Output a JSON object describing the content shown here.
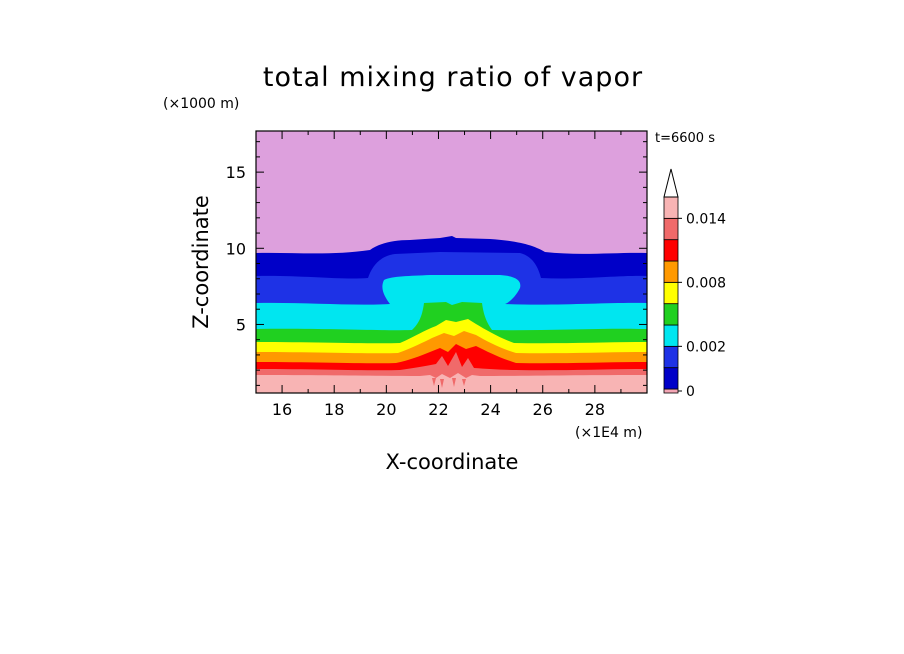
{
  "chart_data": {
    "type": "heatmap",
    "title": "total mixing ratio of vapor",
    "xlabel": "X-coordinate",
    "ylabel": "Z-coordinate",
    "x_unit": "(×1E4 m)",
    "y_unit": "(×1000 m)",
    "time_label": "t=6600 s",
    "xlim": [
      15,
      30
    ],
    "ylim": [
      0.5,
      17.7
    ],
    "x_ticks": [
      "16",
      "18",
      "20",
      "22",
      "24",
      "26",
      "28"
    ],
    "y_ticks": [
      "5",
      "10",
      "15"
    ],
    "colorbar": {
      "labels": [
        "0",
        "0.002",
        "0.008",
        "0.014"
      ],
      "levels": [
        0,
        0.001,
        0.002,
        0.004,
        0.006,
        0.008,
        0.01,
        0.012,
        0.014,
        0.016
      ],
      "colors": [
        "#f4a6b5",
        "#0000c8",
        "#1e32e6",
        "#00e6f0",
        "#20d020",
        "#ffff00",
        "#ff9900",
        "#ff0000",
        "#f06a6a",
        "#f8b4b4",
        "#dda0dd"
      ]
    },
    "bands_far_field": [
      {
        "level_from": 0.016,
        "level_to": 0.014,
        "z_top": 1.3,
        "color": "#f8b4b4"
      },
      {
        "level_from": 0.014,
        "level_to": 0.012,
        "z_top": 1.7,
        "color": "#f06a6a"
      },
      {
        "level_from": 0.012,
        "level_to": 0.01,
        "z_top": 2.2,
        "color": "#ff0000"
      },
      {
        "level_from": 0.01,
        "level_to": 0.008,
        "z_top": 2.8,
        "color": "#ff9900"
      },
      {
        "level_from": 0.008,
        "level_to": 0.006,
        "z_top": 3.5,
        "color": "#ffff00"
      },
      {
        "level_from": 0.006,
        "level_to": 0.004,
        "z_top": 4.4,
        "color": "#20d020"
      },
      {
        "level_from": 0.004,
        "level_to": 0.002,
        "z_top": 6.2,
        "color": "#00e6f0"
      },
      {
        "level_from": 0.002,
        "level_to": 0.001,
        "z_top": 8.0,
        "color": "#1e32e6"
      },
      {
        "level_from": 0.001,
        "level_to": 0.0,
        "z_top": 9.6,
        "color": "#0000c8"
      },
      {
        "level_from": 0.0,
        "level_to": 0.0,
        "z_top": 17.7,
        "color": "#dda0dd"
      }
    ]
  }
}
